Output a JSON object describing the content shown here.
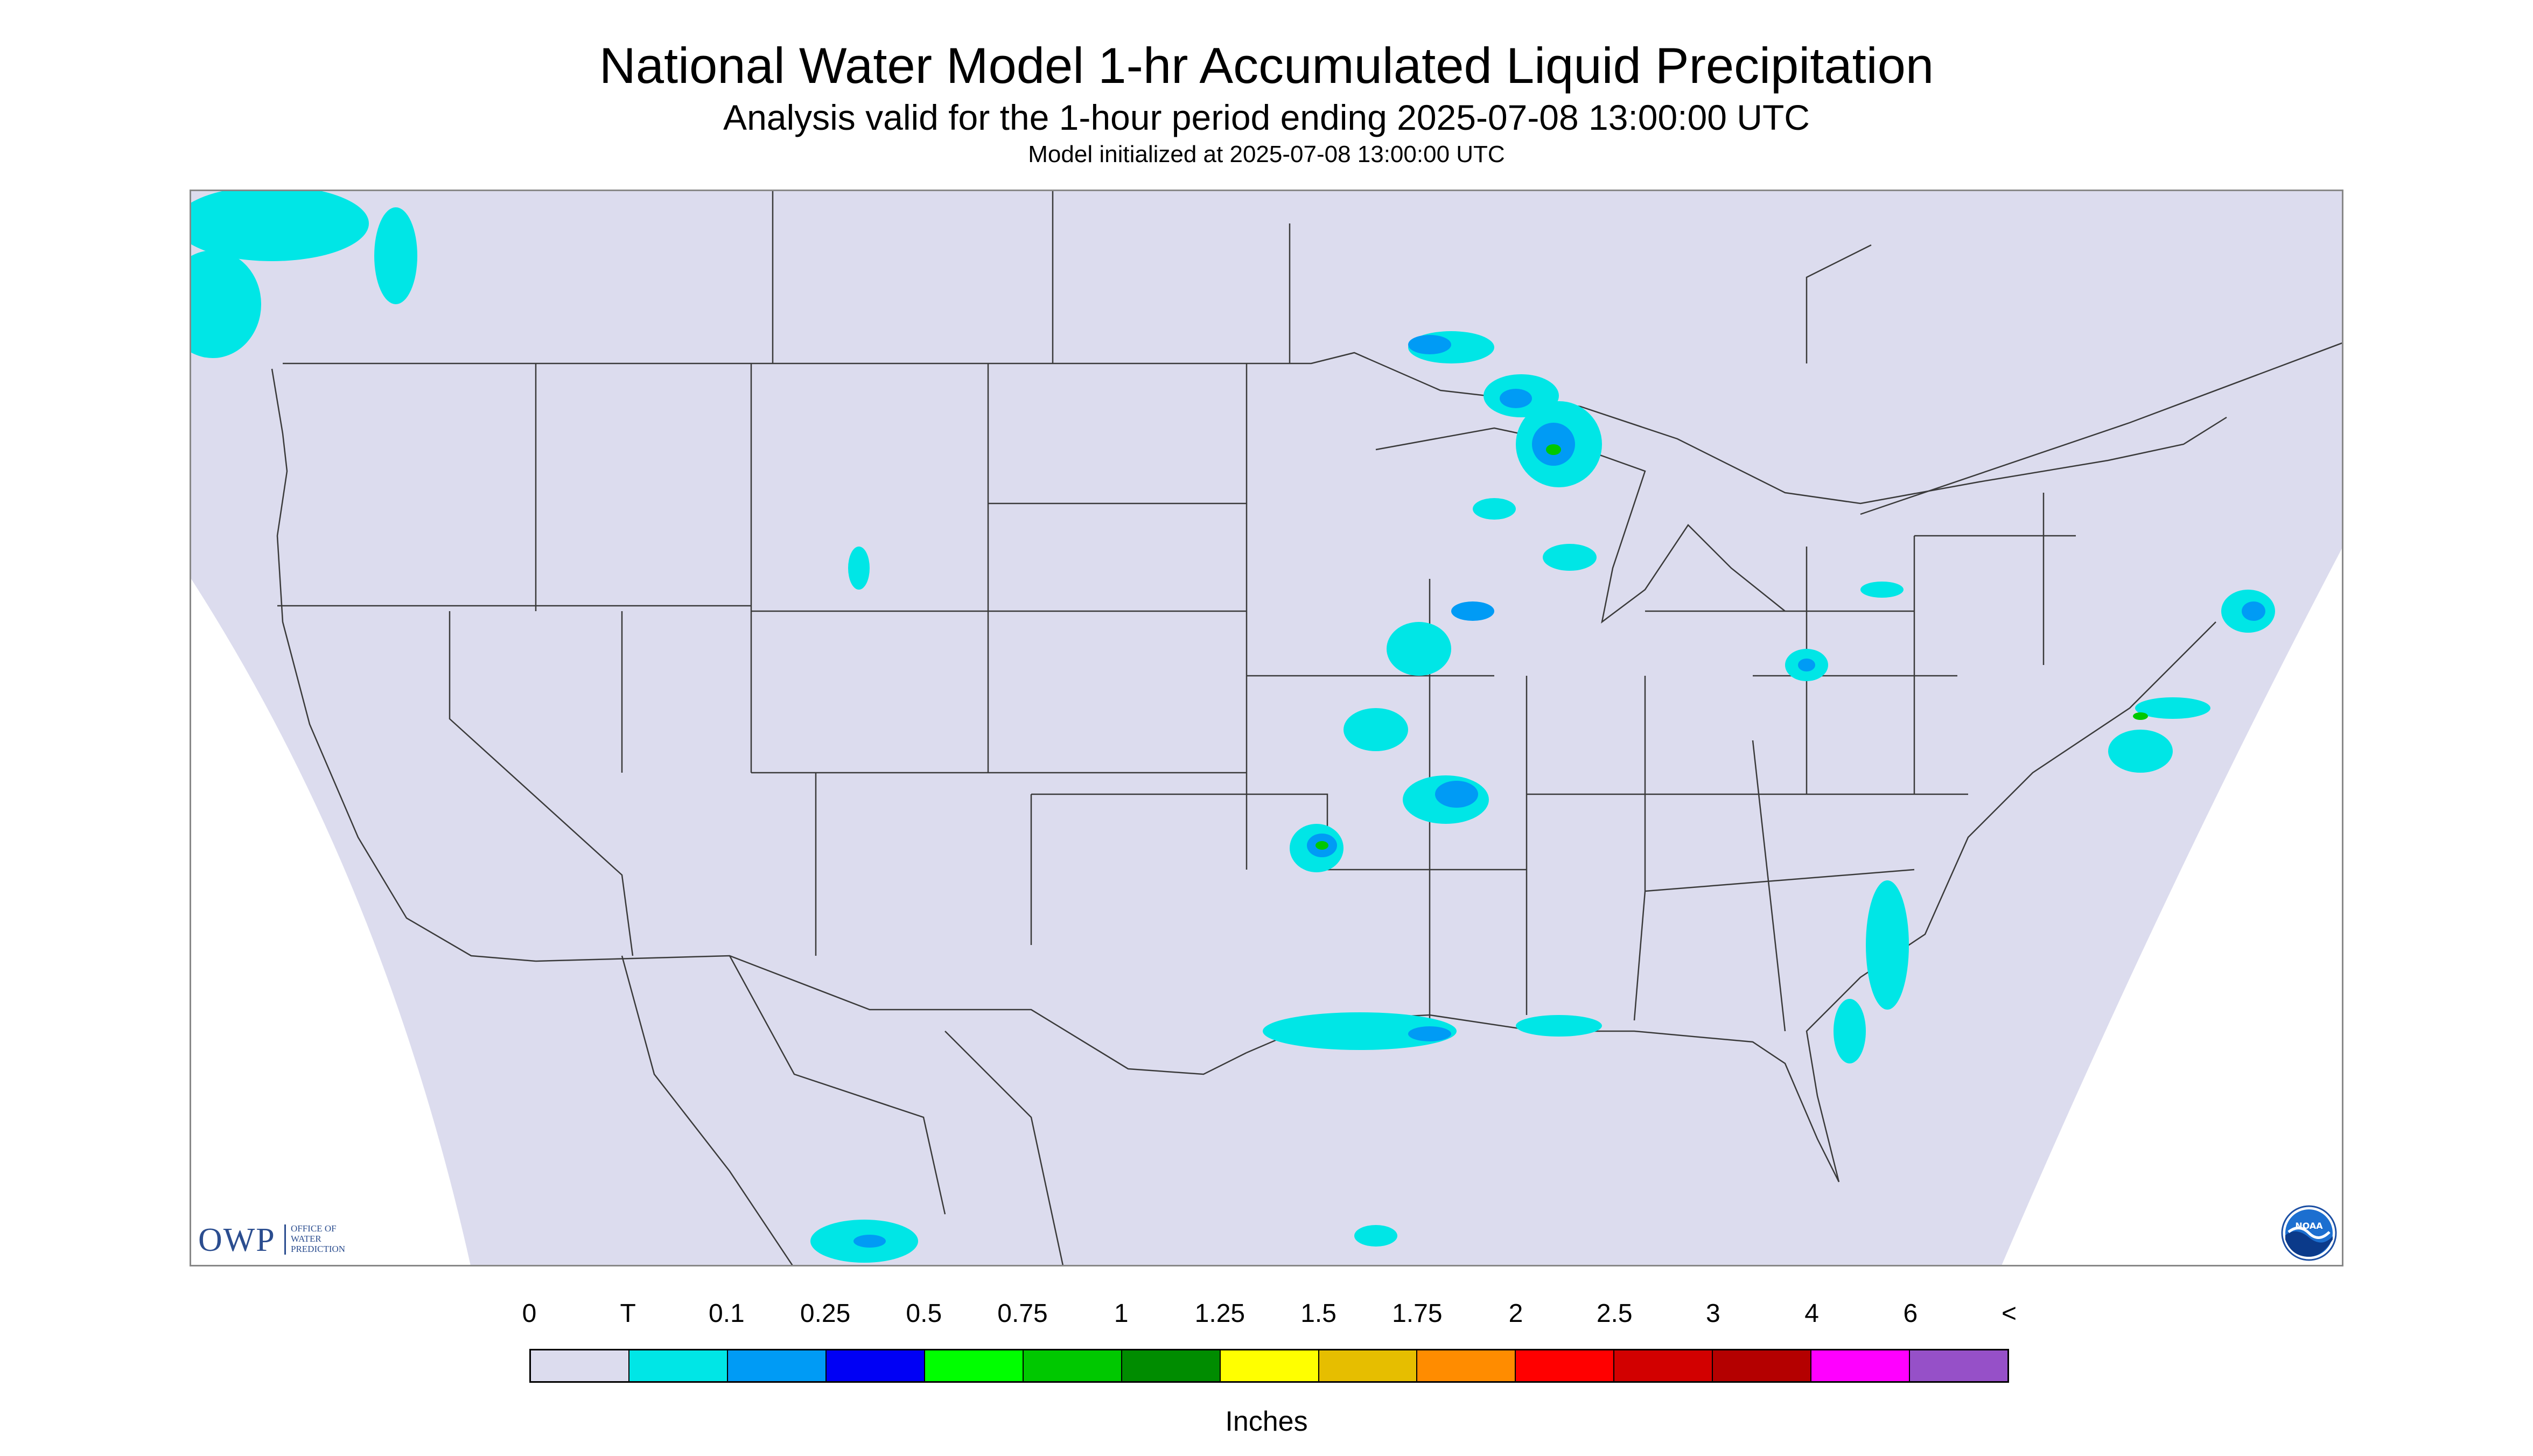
{
  "header": {
    "title": "National Water Model 1-hr Accumulated Liquid Precipitation",
    "subtitle": "Analysis valid for the 1-hour period ending 2025-07-08 13:00:00 UTC",
    "init_line": "Model initialized at 2025-07-08 13:00:00 UTC"
  },
  "map": {
    "domain_fill_color": "#dcdcee",
    "outside_color": "#ffffff",
    "boundary_line_color": "#3a3a3a"
  },
  "branding": {
    "owp_letters": "OWP",
    "owp_name": "OFFICE OF WATER PREDICTION",
    "noaa_text": "NOAA"
  },
  "legend": {
    "labels": [
      "0",
      "T",
      "0.1",
      "0.25",
      "0.5",
      "0.75",
      "1",
      "1.25",
      "1.5",
      "1.75",
      "2",
      "2.5",
      "3",
      "4",
      "6",
      "<"
    ],
    "colors": [
      "#dcdcee",
      "#00e6e6",
      "#009bf5",
      "#0000f5",
      "#00ff00",
      "#00c800",
      "#008c00",
      "#ffff00",
      "#e6be00",
      "#ff8c00",
      "#ff0000",
      "#d20000",
      "#b40000",
      "#ff00ff",
      "#9650c8"
    ],
    "units": "Inches"
  },
  "precip_colors": {
    "trace": "#00e6e6",
    "light": "#009bf5",
    "moderate": "#0000f5",
    "heavy": "#00c800"
  }
}
